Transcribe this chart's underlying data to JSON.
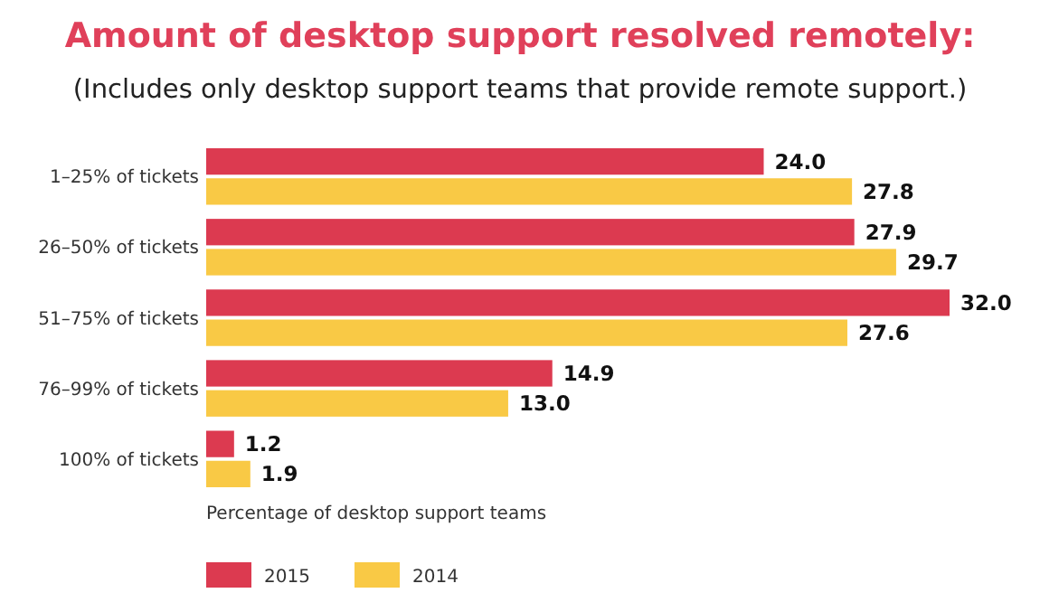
{
  "chart_data": {
    "type": "bar",
    "orientation": "horizontal",
    "title": "Amount of desktop support resolved remotely:",
    "subtitle": "(Includes only desktop support teams that provide remote support.)",
    "xlabel": "Percentage of desktop support teams",
    "categories": [
      "1–25% of tickets",
      "26–50% of tickets",
      "51–75% of tickets",
      "76–99% of tickets",
      "100% of tickets"
    ],
    "series": [
      {
        "name": "2015",
        "color": "#dc3a50",
        "values": [
          24,
          27.9,
          32,
          14.9,
          1.2
        ],
        "value_labels": [
          "24.0",
          "27.9",
          "32.0",
          "14.9",
          "1.2"
        ]
      },
      {
        "name": "2014",
        "color": "#f9c945",
        "values": [
          27.8,
          29.7,
          27.6,
          13,
          1.9
        ],
        "value_labels": [
          "27.8",
          "29.7",
          "27.6",
          "13.0",
          "1.9"
        ]
      }
    ],
    "xlim": [
      0,
      32
    ],
    "tick_labels": "y",
    "legend": "bottom"
  }
}
